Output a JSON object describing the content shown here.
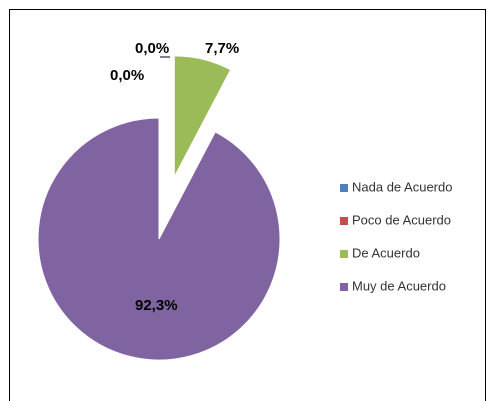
{
  "chart_data": {
    "type": "pie",
    "categories": [
      "Nada de Acuerdo",
      "Poco de Acuerdo",
      "De Acuerdo",
      "Muy de Acuerdo"
    ],
    "values": [
      0.0,
      0.0,
      7.7,
      92.3
    ],
    "value_labels": [
      "0,0%",
      "0,0%",
      "7,7%",
      "92,3%"
    ],
    "colors": [
      "#4f81bd",
      "#c0504d",
      "#9bbb59",
      "#8064a2"
    ],
    "legend": "right"
  }
}
